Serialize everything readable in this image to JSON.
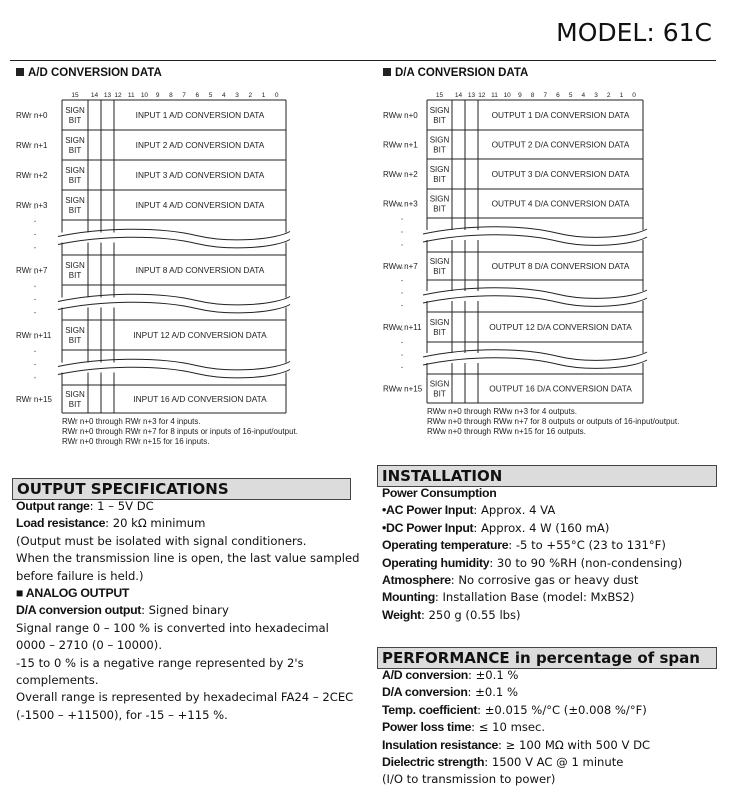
{
  "header": {
    "model": "MODEL: 61C"
  },
  "ad": {
    "title": "A/D CONVERSION DATA",
    "bits": [
      "15",
      "14",
      "13",
      "12",
      "11",
      "10",
      "9",
      "8",
      "7",
      "6",
      "5",
      "4",
      "3",
      "2",
      "1",
      "0"
    ],
    "sign": [
      "SIGN",
      "BIT"
    ],
    "rows": [
      {
        "label": "RWr n+0",
        "data": "INPUT 1  A/D CONVERSION DATA"
      },
      {
        "label": "RWr n+1",
        "data": "INPUT 2  A/D CONVERSION DATA"
      },
      {
        "label": "RWr n+2",
        "data": "INPUT 3  A/D CONVERSION DATA"
      },
      {
        "label": "RWr n+3",
        "data": "INPUT 4  A/D CONVERSION DATA"
      },
      {
        "label": "RWr n+7",
        "data": "INPUT 8  A/D CONVERSION DATA"
      },
      {
        "label": "RWr n+11",
        "data": "INPUT 12  A/D CONVERSION DATA"
      },
      {
        "label": "RWr n+15",
        "data": "INPUT 16  A/D CONVERSION DATA"
      }
    ],
    "notes": [
      "RWr n+0 through RWr n+3 for 4 inputs.",
      "RWr n+0 through RWr n+7 for 8 inputs or inputs of 16-input/output.",
      "RWr n+0 through RWr n+15 for 16 inputs."
    ]
  },
  "da": {
    "title": "D/A CONVERSION DATA",
    "bits": [
      "15",
      "14",
      "13",
      "12",
      "11",
      "10",
      "9",
      "8",
      "7",
      "6",
      "5",
      "4",
      "3",
      "2",
      "1",
      "0"
    ],
    "sign": [
      "SIGN",
      "BIT"
    ],
    "rows": [
      {
        "label": "RWw n+0",
        "data": "OUTPUT 1  D/A CONVERSION DATA"
      },
      {
        "label": "RWw n+1",
        "data": "OUTPUT 2  D/A CONVERSION DATA"
      },
      {
        "label": "RWw n+2",
        "data": "OUTPUT 3  D/A CONVERSION DATA"
      },
      {
        "label": "RWw n+3",
        "data": "OUTPUT 4  D/A CONVERSION DATA"
      },
      {
        "label": "RWw n+7",
        "data": "OUTPUT 8  D/A CONVERSION DATA"
      },
      {
        "label": "RWw n+11",
        "data": "OUTPUT 12  D/A CONVERSION DATA"
      },
      {
        "label": "RWw n+15",
        "data": "OUTPUT 16  D/A CONVERSION DATA"
      }
    ],
    "notes": [
      "RWw n+0 through RWw n+3 for 4 outputs.",
      "RWw n+0 through RWw n+7 for 8 outputs or outputs of 16-input/output.",
      "RWw n+0 through RWw n+15 for 16 outputs."
    ]
  },
  "output_specs": {
    "title": "OUTPUT SPECIFICATIONS",
    "lines": [
      {
        "k": "Output range",
        "v": ": 1 – 5V DC"
      },
      {
        "k": "Load resistance",
        "v": ": 20 kΩ minimum"
      },
      {
        "k": "",
        "v": "(Output must be isolated with signal conditioners."
      },
      {
        "k": "",
        "v": "When the transmission line is open, the last value sampled"
      },
      {
        "k": "",
        "v": "before failure is held.)"
      },
      {
        "k": "■ ANALOG OUTPUT",
        "v": ""
      },
      {
        "k": "D/A conversion output",
        "v": ": Signed binary"
      },
      {
        "k": "",
        "v": "Signal range 0 – 100 % is converted into hexadecimal"
      },
      {
        "k": "",
        "v": "0000 – 2710 (0 – 10000)."
      },
      {
        "k": "",
        "v": "-15 to 0 % is a negative range represented by 2's"
      },
      {
        "k": "",
        "v": "complements."
      },
      {
        "k": "",
        "v": "Overall range is represented by hexadecimal FA24 – 2CEC"
      },
      {
        "k": "",
        "v": "(-1500 – +11500), for -15 – +115 %."
      }
    ]
  },
  "installation": {
    "title": "INSTALLATION",
    "lines": [
      {
        "k": "Power Consumption",
        "v": ""
      },
      {
        "k": "•AC Power Input",
        "v": ": Approx. 4 VA"
      },
      {
        "k": "•DC Power Input",
        "v": ": Approx. 4 W (160 mA)"
      },
      {
        "k": "Operating temperature",
        "v": ": -5 to +55°C (23 to 131°F)"
      },
      {
        "k": "Operating humidity",
        "v": ": 30 to 90 %RH (non-condensing)"
      },
      {
        "k": "Atmosphere",
        "v": ": No corrosive gas or heavy dust"
      },
      {
        "k": "Mounting",
        "v": ": Installation Base (model: MxBS2)"
      },
      {
        "k": "Weight",
        "v": ": 250 g (0.55 lbs)"
      }
    ]
  },
  "performance": {
    "title": "PERFORMANCE in percentage of span",
    "lines": [
      {
        "k": "A/D conversion",
        "v": ": ±0.1 %"
      },
      {
        "k": "D/A conversion",
        "v": ": ±0.1 %"
      },
      {
        "k": "Temp. coefficient",
        "v": ": ±0.015 %/°C (±0.008 %/°F)"
      },
      {
        "k": "Power loss time",
        "v": ": ≤ 10 msec."
      },
      {
        "k": "Insulation resistance",
        "v": ": ≥ 100 MΩ with 500 V DC"
      },
      {
        "k": "Dielectric strength",
        "v": ": 1500 V AC @ 1 minute"
      },
      {
        "k": "",
        "v": "(I/O to transmission to power)"
      }
    ]
  }
}
